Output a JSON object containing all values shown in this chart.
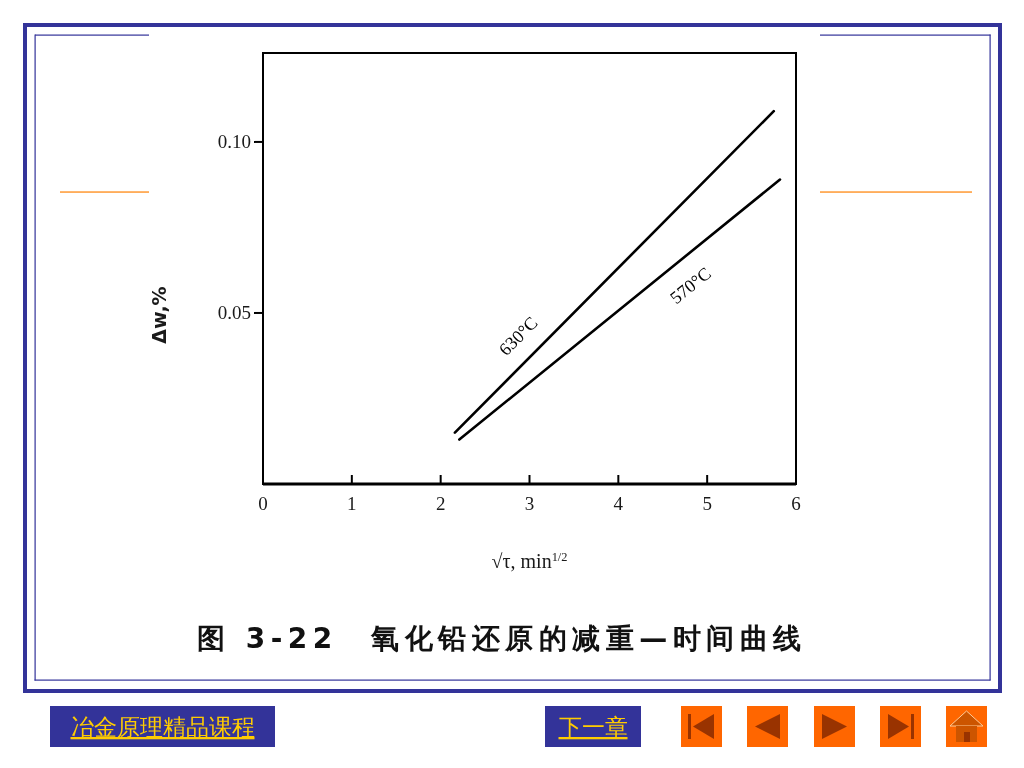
{
  "chart_data": {
    "type": "line",
    "title": "图 3-22　氧化铅还原的减重—时间曲线",
    "xlabel": "√τ, min$^{1/2}$",
    "ylabel": "Δw,%",
    "series": [
      {
        "name": "630°C",
        "color": "#000000",
        "x": [
          2.16,
          5.75
        ],
        "values": [
          0.015,
          0.109
        ]
      },
      {
        "name": "570°C",
        "color": "#000000",
        "x": [
          2.21,
          5.82
        ],
        "values": [
          0.013,
          0.089
        ]
      }
    ],
    "xlim": [
      0,
      6
    ],
    "ylim": [
      0,
      0.126
    ],
    "xticks": [
      0,
      1,
      2,
      3,
      4,
      5,
      6
    ],
    "yticks": [
      {
        "value": 0.05,
        "label": "0.05"
      },
      {
        "value": 0.1,
        "label": "0.10"
      }
    ],
    "annotations": [
      "冶金原理精品课程",
      "下一章"
    ]
  }
}
